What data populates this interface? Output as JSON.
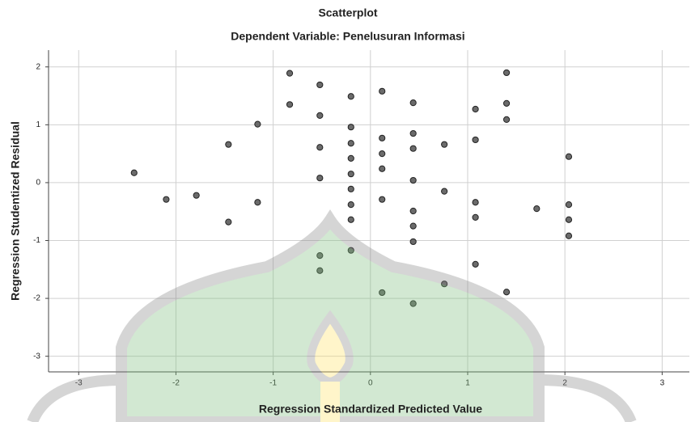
{
  "chart_data": {
    "type": "scatter",
    "title": "Scatterplot",
    "subtitle": "Dependent Variable: Penelusuran Informasi",
    "x_label": "Regression Standardized Predicted Value",
    "y_label": "Regression Studentized Residual",
    "color": "#6b6b6b",
    "grid": true,
    "xlim": [
      -3.31,
      3.28
    ],
    "ylim": [
      -3.27,
      2.29
    ],
    "xticks": [
      -3,
      -2,
      -1,
      0,
      1,
      2,
      3
    ],
    "yticks": [
      -3,
      -2,
      -1,
      0,
      1,
      2
    ],
    "x": [
      -2.43,
      -2.1,
      -1.79,
      -1.46,
      -1.46,
      -1.16,
      -1.16,
      -0.83,
      -0.83,
      -0.52,
      -0.52,
      -0.52,
      -0.52,
      -0.52,
      -0.52,
      -0.2,
      -0.2,
      -0.2,
      -0.2,
      -0.2,
      -0.2,
      -0.2,
      -0.2,
      -0.2,
      0.12,
      0.12,
      0.12,
      0.12,
      0.12,
      0.12,
      0.44,
      0.44,
      0.44,
      0.44,
      0.44,
      0.44,
      0.44,
      0.44,
      0.76,
      0.76,
      0.76,
      1.08,
      1.08,
      1.08,
      1.08,
      1.08,
      1.4,
      1.4,
      1.4,
      1.4,
      1.71,
      2.04,
      2.04,
      2.04,
      2.04
    ],
    "values": [
      0.17,
      -0.29,
      -0.22,
      0.66,
      -0.68,
      1.01,
      -0.34,
      1.89,
      1.35,
      1.69,
      1.16,
      0.61,
      0.08,
      -1.26,
      -1.52,
      1.49,
      0.96,
      0.68,
      0.42,
      0.15,
      -0.11,
      -0.38,
      -0.64,
      -1.17,
      1.58,
      0.77,
      0.5,
      0.24,
      -0.29,
      -1.9,
      1.38,
      0.85,
      0.59,
      0.04,
      -0.49,
      -0.75,
      -1.02,
      -2.09,
      0.66,
      -0.15,
      -1.75,
      1.27,
      0.74,
      -0.34,
      -0.6,
      -1.41,
      1.9,
      1.37,
      1.09,
      -1.89,
      -0.45,
      0.45,
      -0.38,
      -0.64,
      -0.92
    ]
  }
}
